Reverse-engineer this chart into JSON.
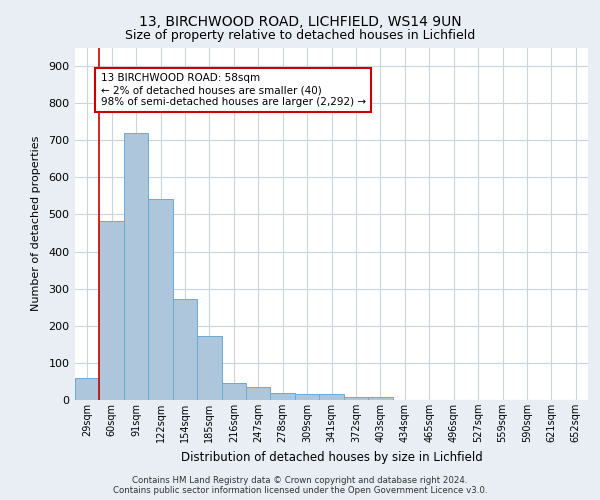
{
  "title1": "13, BIRCHWOOD ROAD, LICHFIELD, WS14 9UN",
  "title2": "Size of property relative to detached houses in Lichfield",
  "xlabel": "Distribution of detached houses by size in Lichfield",
  "ylabel": "Number of detached properties",
  "categories": [
    "29sqm",
    "60sqm",
    "91sqm",
    "122sqm",
    "154sqm",
    "185sqm",
    "216sqm",
    "247sqm",
    "278sqm",
    "309sqm",
    "341sqm",
    "372sqm",
    "403sqm",
    "434sqm",
    "465sqm",
    "496sqm",
    "527sqm",
    "559sqm",
    "590sqm",
    "621sqm",
    "652sqm"
  ],
  "values": [
    60,
    483,
    720,
    543,
    272,
    172,
    47,
    35,
    18,
    15,
    15,
    8,
    8,
    0,
    0,
    0,
    0,
    0,
    0,
    0,
    0
  ],
  "bar_color": "#aec6dc",
  "bar_edgecolor": "#6aaad4",
  "annotation_text": "13 BIRCHWOOD ROAD: 58sqm\n← 2% of detached houses are smaller (40)\n98% of semi-detached houses are larger (2,292) →",
  "annotation_box_color": "#ffffff",
  "annotation_box_edgecolor": "#cc0000",
  "ylim": [
    0,
    950
  ],
  "yticks": [
    0,
    100,
    200,
    300,
    400,
    500,
    600,
    700,
    800,
    900
  ],
  "footer1": "Contains HM Land Registry data © Crown copyright and database right 2024.",
  "footer2": "Contains public sector information licensed under the Open Government Licence v3.0.",
  "background_color": "#e8eef4",
  "plot_bg_color": "#ffffff",
  "grid_color": "#c8d4df"
}
